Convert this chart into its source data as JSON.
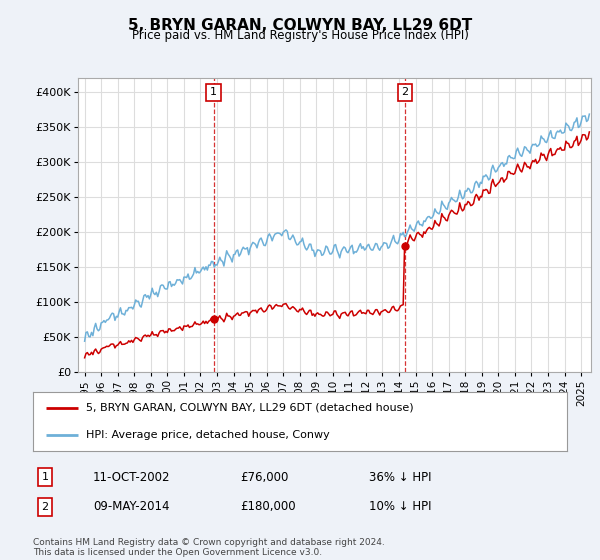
{
  "title": "5, BRYN GARAN, COLWYN BAY, LL29 6DT",
  "subtitle": "Price paid vs. HM Land Registry's House Price Index (HPI)",
  "ylim": [
    0,
    420000
  ],
  "yticks": [
    0,
    50000,
    100000,
    150000,
    200000,
    250000,
    300000,
    350000,
    400000
  ],
  "hpi_color": "#6eb0d8",
  "price_color": "#cc0000",
  "vline_color": "#cc0000",
  "purchase1_year": 2002.79,
  "purchase1_price": 76000,
  "purchase1_label": "1",
  "purchase2_year": 2014.36,
  "purchase2_price": 180000,
  "purchase2_label": "2",
  "legend_entry1": "5, BRYN GARAN, COLWYN BAY, LL29 6DT (detached house)",
  "legend_entry2": "HPI: Average price, detached house, Conwy",
  "table_row1": [
    "1",
    "11-OCT-2002",
    "£76,000",
    "36% ↓ HPI"
  ],
  "table_row2": [
    "2",
    "09-MAY-2014",
    "£180,000",
    "10% ↓ HPI"
  ],
  "footer": "Contains HM Land Registry data © Crown copyright and database right 2024.\nThis data is licensed under the Open Government Licence v3.0.",
  "bg_color": "#eef2f8",
  "plot_bg_color": "#ffffff",
  "grid_color": "#dddddd",
  "x_start_year": 1995,
  "x_end_year": 2025
}
